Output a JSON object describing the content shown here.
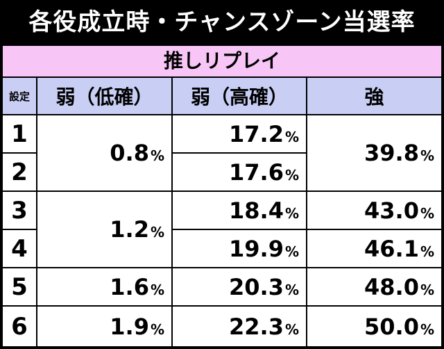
{
  "title": "各役成立時・チャンスゾーン当選率",
  "subheader": "推しリプレイ",
  "table": {
    "headers": {
      "setting": "設定",
      "weak_low": "弱（低確）",
      "weak_high": "弱（高確）",
      "strong": "強"
    },
    "settings": [
      "1",
      "2",
      "3",
      "4",
      "5",
      "6"
    ],
    "weak_low": [
      "0.8",
      "1.2",
      "1.6",
      "1.9"
    ],
    "weak_high": [
      "17.2",
      "17.6",
      "18.4",
      "19.9",
      "20.3",
      "22.3"
    ],
    "strong": [
      "39.8",
      "43.0",
      "46.1",
      "48.0",
      "50.0"
    ],
    "unit": "%"
  }
}
